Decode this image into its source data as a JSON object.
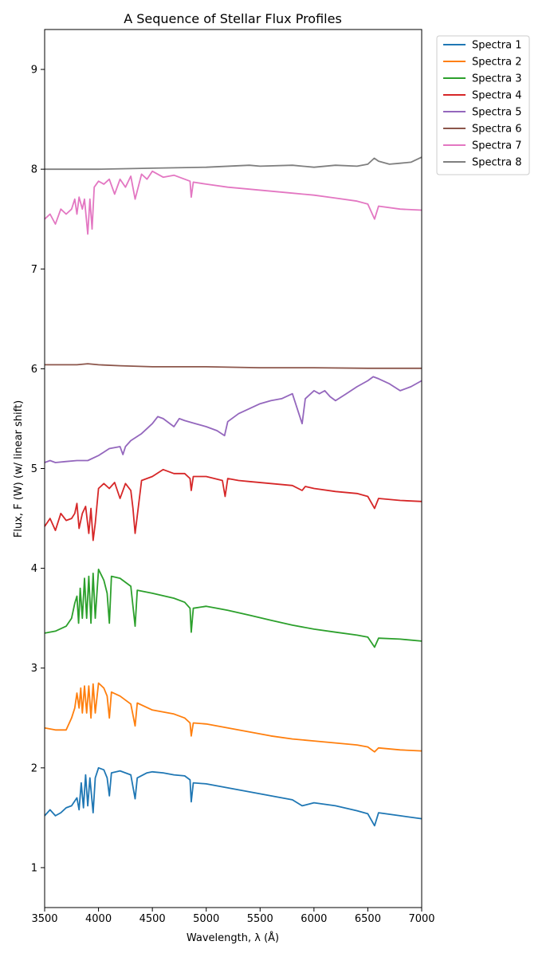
{
  "chart_data": {
    "type": "line",
    "title": "A Sequence of Stellar Flux Profiles",
    "xlabel": "Wavelength, λ (Å)",
    "ylabel": "Flux, F (W) (w/ linear shift)",
    "xlim": [
      3500,
      7000
    ],
    "ylim": [
      0.6,
      9.4
    ],
    "xticks": [
      3500,
      4000,
      4500,
      5000,
      5500,
      6000,
      6500,
      7000
    ],
    "yticks": [
      1,
      2,
      3,
      4,
      5,
      6,
      7,
      8,
      9
    ],
    "grid": false,
    "legend_position": "outside top-right",
    "series": [
      {
        "name": "Spectra 1",
        "color": "#1f77b4",
        "x": [
          3500,
          3550,
          3600,
          3650,
          3700,
          3750,
          3800,
          3820,
          3840,
          3860,
          3880,
          3900,
          3920,
          3950,
          3970,
          4000,
          4050,
          4080,
          4101,
          4120,
          4200,
          4300,
          4340,
          4360,
          4450,
          4500,
          4600,
          4700,
          4800,
          4850,
          4861,
          4880,
          5000,
          5200,
          5400,
          5600,
          5800,
          5890,
          6000,
          6200,
          6400,
          6500,
          6563,
          6600,
          6800,
          7000
        ],
        "y": [
          1.52,
          1.58,
          1.52,
          1.55,
          1.6,
          1.62,
          1.7,
          1.58,
          1.85,
          1.6,
          1.93,
          1.62,
          1.9,
          1.55,
          1.9,
          2.0,
          1.98,
          1.9,
          1.72,
          1.95,
          1.97,
          1.93,
          1.69,
          1.9,
          1.95,
          1.96,
          1.95,
          1.93,
          1.92,
          1.88,
          1.66,
          1.85,
          1.84,
          1.8,
          1.76,
          1.72,
          1.68,
          1.62,
          1.65,
          1.62,
          1.57,
          1.54,
          1.42,
          1.55,
          1.52,
          1.49
        ]
      },
      {
        "name": "Spectra 2",
        "color": "#ff7f0e",
        "x": [
          3500,
          3600,
          3700,
          3750,
          3780,
          3800,
          3820,
          3835,
          3850,
          3870,
          3890,
          3910,
          3930,
          3950,
          3970,
          4000,
          4050,
          4080,
          4101,
          4120,
          4200,
          4300,
          4340,
          4360,
          4500,
          4700,
          4800,
          4850,
          4861,
          4880,
          5000,
          5200,
          5400,
          5600,
          5800,
          6000,
          6200,
          6400,
          6500,
          6563,
          6600,
          6800,
          7000
        ],
        "y": [
          2.4,
          2.38,
          2.38,
          2.5,
          2.6,
          2.75,
          2.6,
          2.8,
          2.55,
          2.82,
          2.55,
          2.82,
          2.5,
          2.84,
          2.55,
          2.85,
          2.8,
          2.72,
          2.5,
          2.76,
          2.72,
          2.64,
          2.42,
          2.65,
          2.58,
          2.54,
          2.5,
          2.45,
          2.32,
          2.45,
          2.44,
          2.4,
          2.36,
          2.32,
          2.29,
          2.27,
          2.25,
          2.23,
          2.21,
          2.16,
          2.2,
          2.18,
          2.17
        ]
      },
      {
        "name": "Spectra 3",
        "color": "#2ca02c",
        "x": [
          3500,
          3600,
          3700,
          3750,
          3780,
          3800,
          3815,
          3830,
          3850,
          3870,
          3890,
          3910,
          3930,
          3950,
          3970,
          4000,
          4050,
          4080,
          4101,
          4120,
          4200,
          4300,
          4340,
          4360,
          4500,
          4700,
          4800,
          4850,
          4861,
          4880,
          5000,
          5200,
          5400,
          5600,
          5800,
          6000,
          6200,
          6400,
          6500,
          6563,
          6600,
          6800,
          7000
        ],
        "y": [
          3.35,
          3.37,
          3.42,
          3.5,
          3.65,
          3.72,
          3.45,
          3.8,
          3.5,
          3.9,
          3.5,
          3.92,
          3.45,
          3.95,
          3.5,
          3.99,
          3.88,
          3.75,
          3.45,
          3.92,
          3.9,
          3.82,
          3.42,
          3.78,
          3.75,
          3.7,
          3.66,
          3.6,
          3.36,
          3.6,
          3.62,
          3.58,
          3.53,
          3.48,
          3.43,
          3.39,
          3.36,
          3.33,
          3.31,
          3.21,
          3.3,
          3.29,
          3.27
        ]
      },
      {
        "name": "Spectra 4",
        "color": "#d62728",
        "x": [
          3500,
          3550,
          3600,
          3650,
          3700,
          3750,
          3780,
          3800,
          3820,
          3850,
          3880,
          3910,
          3930,
          3950,
          3970,
          4000,
          4050,
          4100,
          4150,
          4200,
          4250,
          4300,
          4320,
          4340,
          4400,
          4500,
          4600,
          4700,
          4800,
          4850,
          4861,
          4880,
          5000,
          5150,
          5175,
          5200,
          5300,
          5400,
          5600,
          5800,
          5890,
          5920,
          6000,
          6200,
          6400,
          6500,
          6563,
          6600,
          6800,
          7000
        ],
        "y": [
          4.42,
          4.5,
          4.38,
          4.55,
          4.48,
          4.5,
          4.55,
          4.65,
          4.4,
          4.55,
          4.62,
          4.35,
          4.6,
          4.28,
          4.45,
          4.8,
          4.85,
          4.8,
          4.86,
          4.7,
          4.85,
          4.78,
          4.6,
          4.35,
          4.88,
          4.92,
          4.99,
          4.95,
          4.95,
          4.9,
          4.78,
          4.92,
          4.92,
          4.88,
          4.72,
          4.9,
          4.88,
          4.87,
          4.85,
          4.83,
          4.78,
          4.82,
          4.8,
          4.77,
          4.75,
          4.72,
          4.6,
          4.7,
          4.68,
          4.67
        ]
      },
      {
        "name": "Spectra 5",
        "color": "#9467bd",
        "x": [
          3500,
          3550,
          3600,
          3700,
          3800,
          3900,
          4000,
          4100,
          4200,
          4227,
          4250,
          4300,
          4400,
          4500,
          4550,
          4600,
          4700,
          4750,
          4800,
          4900,
          5000,
          5100,
          5170,
          5200,
          5300,
          5400,
          5500,
          5600,
          5700,
          5800,
          5890,
          5920,
          6000,
          6050,
          6100,
          6150,
          6200,
          6300,
          6400,
          6500,
          6550,
          6600,
          6700,
          6800,
          6900,
          7000
        ],
        "y": [
          5.06,
          5.08,
          5.06,
          5.07,
          5.08,
          5.08,
          5.13,
          5.2,
          5.22,
          5.14,
          5.22,
          5.28,
          5.35,
          5.45,
          5.52,
          5.5,
          5.42,
          5.5,
          5.48,
          5.45,
          5.42,
          5.38,
          5.33,
          5.47,
          5.55,
          5.6,
          5.65,
          5.68,
          5.7,
          5.75,
          5.45,
          5.7,
          5.78,
          5.75,
          5.78,
          5.72,
          5.68,
          5.75,
          5.82,
          5.88,
          5.92,
          5.9,
          5.85,
          5.78,
          5.82,
          5.88
        ]
      },
      {
        "name": "Spectra 6",
        "color": "#8c564b",
        "x": [
          3500,
          3800,
          3900,
          4000,
          4200,
          4500,
          5000,
          5500,
          6000,
          6500,
          7000
        ],
        "y": [
          6.04,
          6.04,
          6.05,
          6.04,
          6.03,
          6.02,
          6.02,
          6.01,
          6.01,
          6.005,
          6.005
        ]
      },
      {
        "name": "Spectra 7",
        "color": "#e377c2",
        "x": [
          3500,
          3550,
          3600,
          3650,
          3700,
          3750,
          3780,
          3800,
          3820,
          3850,
          3870,
          3900,
          3920,
          3940,
          3960,
          4000,
          4050,
          4100,
          4150,
          4200,
          4250,
          4300,
          4340,
          4400,
          4450,
          4500,
          4550,
          4600,
          4700,
          4800,
          4850,
          4861,
          4880,
          5000,
          5200,
          5400,
          5600,
          5800,
          6000,
          6200,
          6400,
          6500,
          6563,
          6600,
          6800,
          7000
        ],
        "y": [
          7.5,
          7.55,
          7.45,
          7.6,
          7.55,
          7.6,
          7.7,
          7.55,
          7.72,
          7.6,
          7.7,
          7.35,
          7.7,
          7.4,
          7.82,
          7.88,
          7.85,
          7.9,
          7.75,
          7.9,
          7.82,
          7.93,
          7.7,
          7.95,
          7.9,
          7.98,
          7.95,
          7.92,
          7.94,
          7.9,
          7.88,
          7.72,
          7.87,
          7.85,
          7.82,
          7.8,
          7.78,
          7.76,
          7.74,
          7.71,
          7.68,
          7.65,
          7.5,
          7.63,
          7.6,
          7.59
        ]
      },
      {
        "name": "Spectra 8",
        "color": "#7f7f7f",
        "x": [
          3500,
          4000,
          4500,
          5000,
          5400,
          5500,
          5800,
          6000,
          6200,
          6400,
          6500,
          6560,
          6600,
          6700,
          6800,
          6900,
          7000
        ],
        "y": [
          8.0,
          8.0,
          8.01,
          8.02,
          8.04,
          8.03,
          8.04,
          8.02,
          8.04,
          8.03,
          8.05,
          8.11,
          8.08,
          8.05,
          8.06,
          8.07,
          8.12
        ]
      }
    ]
  }
}
